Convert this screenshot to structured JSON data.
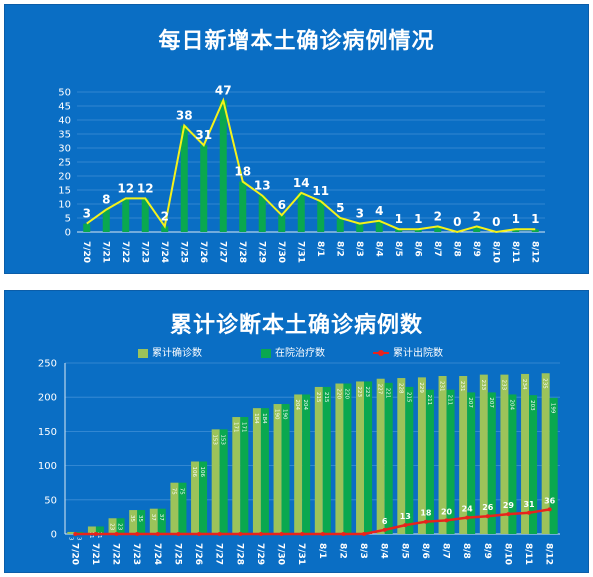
{
  "chart_data": [
    {
      "type": "bar",
      "title": "每日新增本土确诊病例情况",
      "categories": [
        "7/20",
        "7/21",
        "7/22",
        "7/23",
        "7/24",
        "7/25",
        "7/26",
        "7/27",
        "7/28",
        "7/29",
        "7/30",
        "7/31",
        "8/1",
        "8/2",
        "8/3",
        "8/4",
        "8/5",
        "8/6",
        "8/7",
        "8/8",
        "8/9",
        "8/10",
        "8/11",
        "8/12"
      ],
      "values": [
        3,
        8,
        12,
        12,
        2,
        38,
        31,
        47,
        18,
        13,
        6,
        14,
        11,
        5,
        3,
        4,
        1,
        1,
        2,
        0,
        2,
        0,
        1,
        1
      ],
      "overlay_line": true,
      "ylim": [
        0,
        50
      ],
      "yticks": [
        0,
        5,
        10,
        15,
        20,
        25,
        30,
        35,
        40,
        45,
        50
      ],
      "grid": true,
      "colors": {
        "bar": "#0aa84f",
        "line": "#f4f21a",
        "label": "#ffffff"
      }
    },
    {
      "type": "bar",
      "title": "累计诊断本土确诊病例数",
      "categories": [
        "7/20",
        "7/21",
        "7/22",
        "7/23",
        "7/24",
        "7/25",
        "7/26",
        "7/27",
        "7/28",
        "7/29",
        "7/30",
        "7/31",
        "8/1",
        "8/2",
        "8/3",
        "8/4",
        "8/5",
        "8/6",
        "8/7",
        "8/8",
        "8/9",
        "8/10",
        "8/11",
        "8/12"
      ],
      "series": [
        {
          "name": "累计确诊数",
          "type": "bar",
          "color": "#9cc35a",
          "values": [
            3,
            11,
            23,
            35,
            37,
            75,
            106,
            153,
            171,
            184,
            190,
            204,
            215,
            220,
            223,
            227,
            228,
            229,
            231,
            231,
            233,
            233,
            234,
            235
          ]
        },
        {
          "name": "在院治疗数",
          "type": "bar",
          "color": "#0aa84f",
          "values": [
            3,
            11,
            23,
            35,
            37,
            75,
            106,
            153,
            171,
            184,
            190,
            204,
            215,
            220,
            223,
            221,
            215,
            211,
            211,
            207,
            207,
            204,
            203,
            199
          ]
        },
        {
          "name": "累计出院数",
          "type": "line",
          "color": "#e8231c",
          "values": [
            0,
            0,
            0,
            0,
            0,
            0,
            0,
            0,
            0,
            0,
            0,
            0,
            0,
            0,
            0,
            6,
            13,
            18,
            20,
            24,
            26,
            29,
            31,
            36
          ]
        }
      ],
      "ylim": [
        0,
        250
      ],
      "yticks": [
        0,
        50,
        100,
        150,
        200,
        250
      ],
      "legend": "top",
      "grid": true
    }
  ]
}
